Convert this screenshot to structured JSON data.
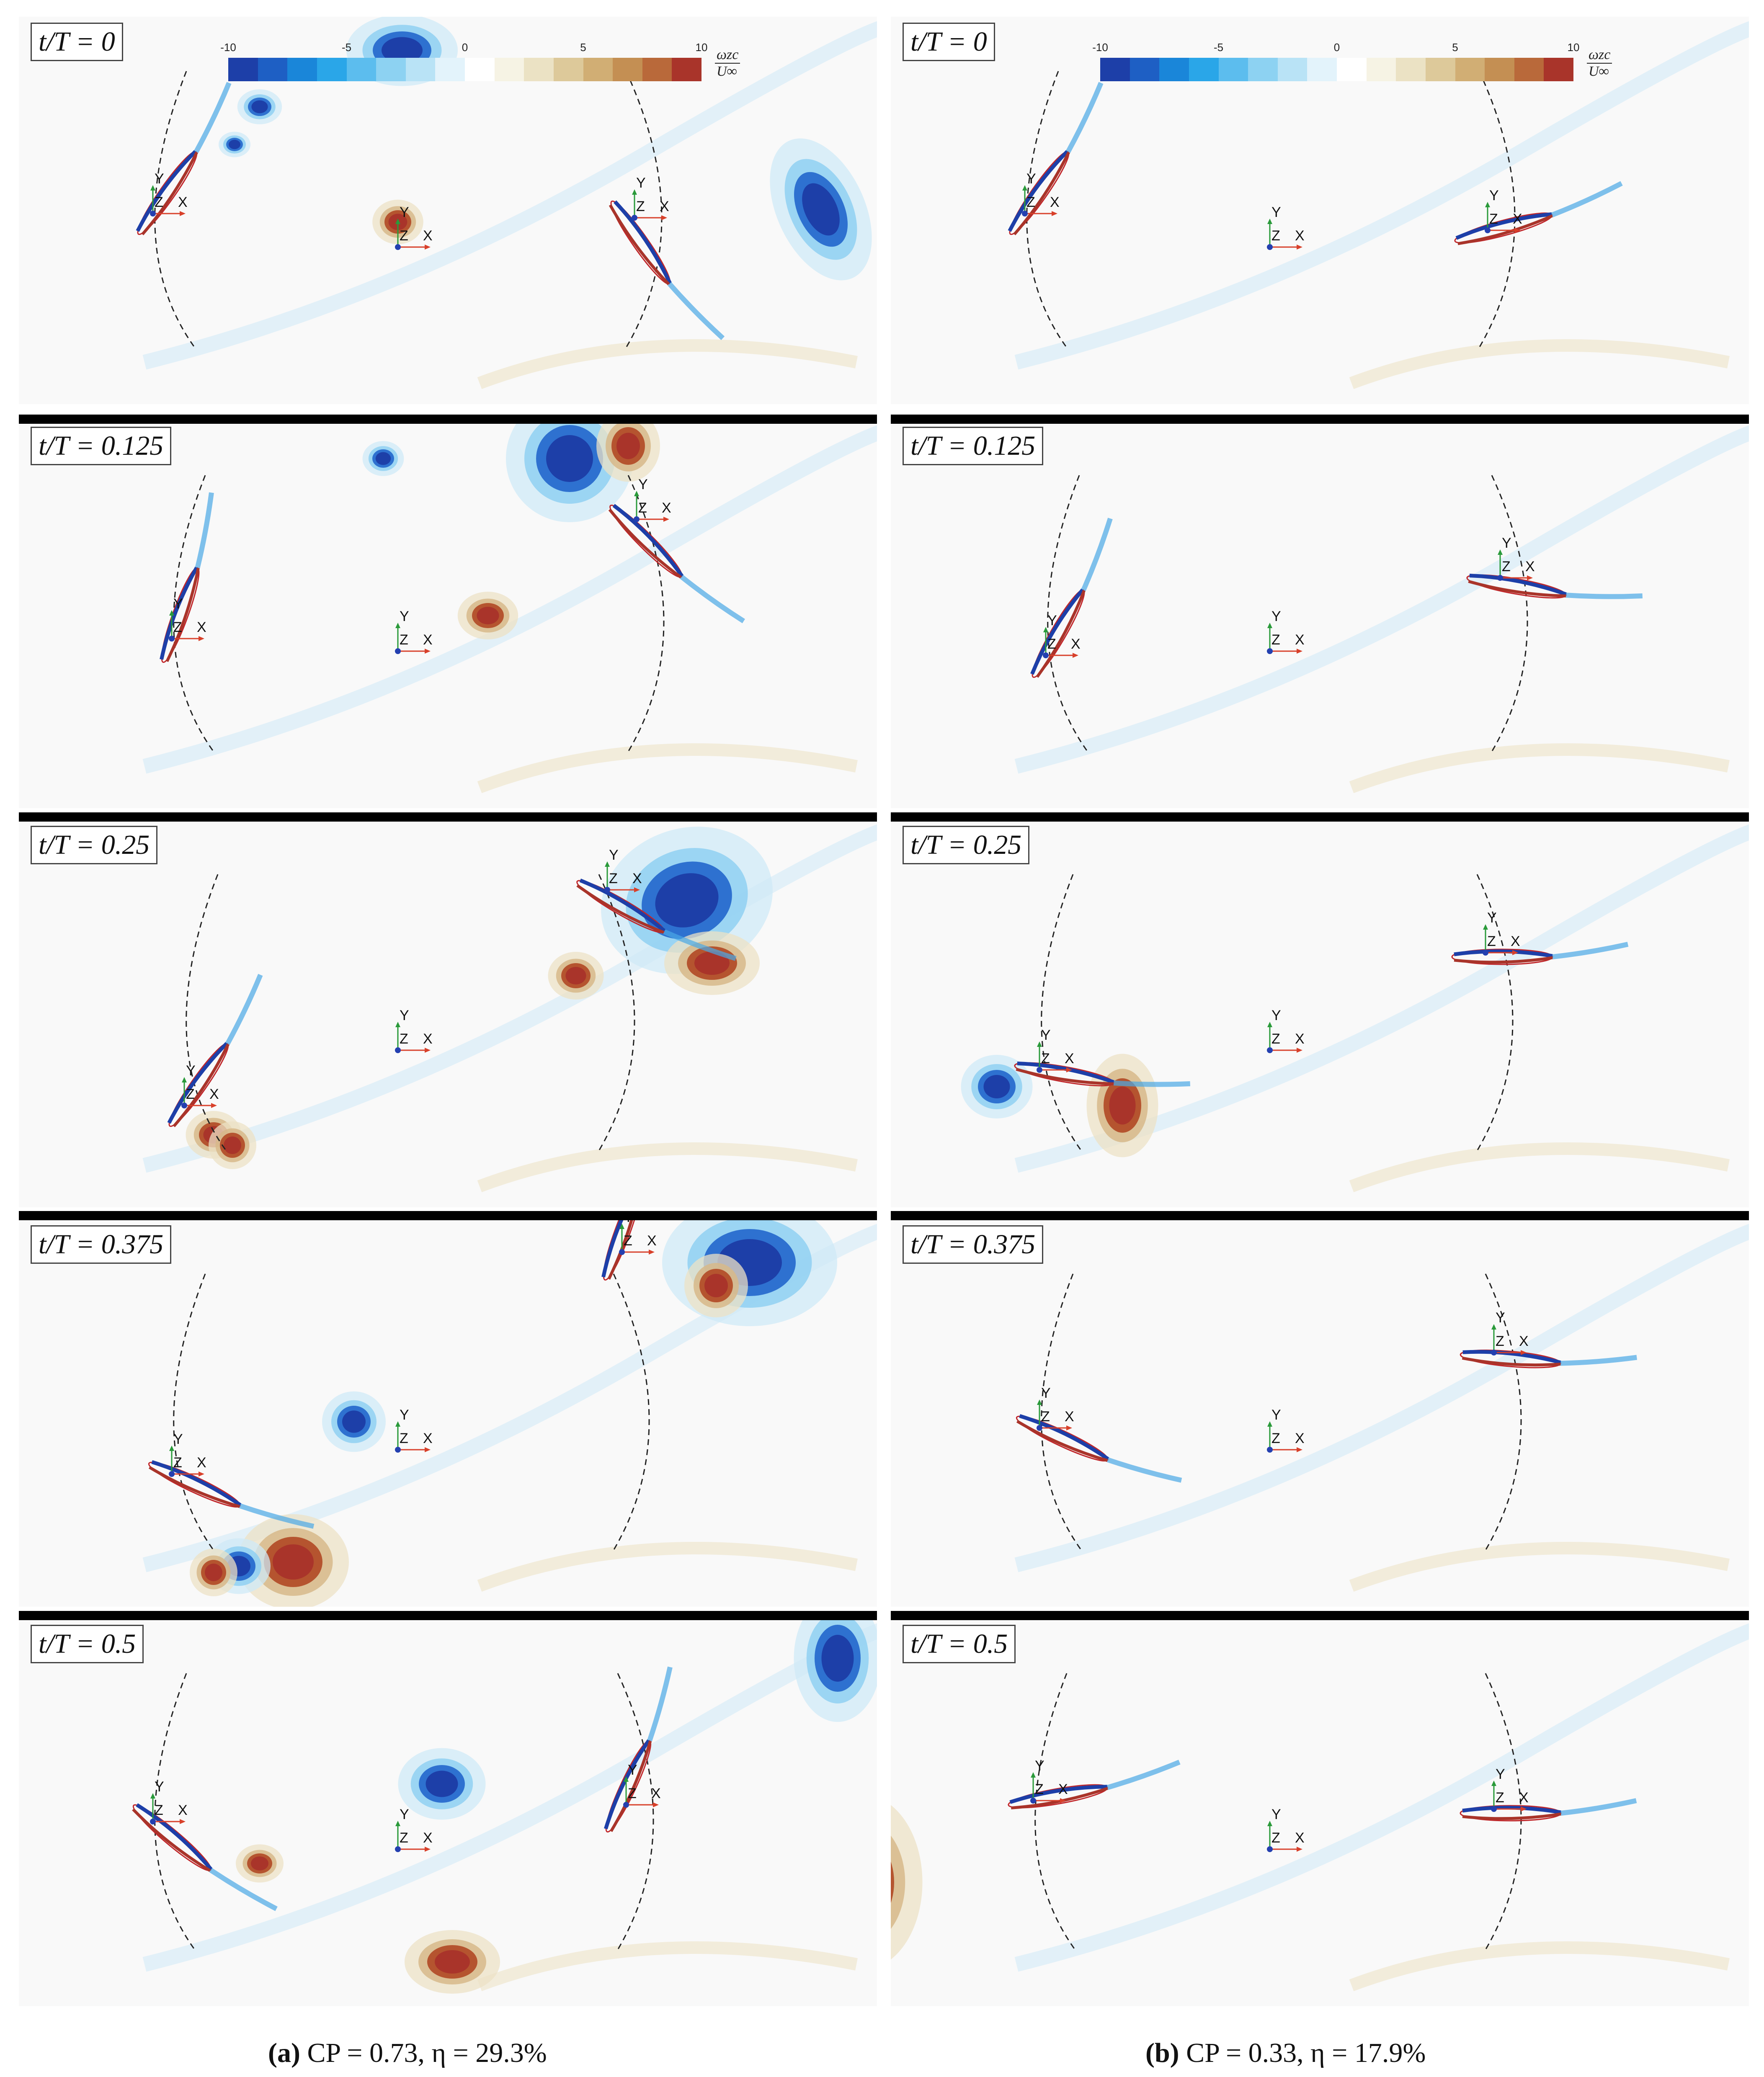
{
  "colorbar": {
    "ticks": [
      "-10",
      "-5",
      "0",
      "5",
      "10"
    ],
    "unit_numerator": "ωzc",
    "unit_denominator": "U∞",
    "colors": [
      "#1d3fa8",
      "#1e5fc4",
      "#1a86d9",
      "#2aa6e8",
      "#5cbdee",
      "#8dd2f2",
      "#b9e3f6",
      "#e3f3fb",
      "#ffffff",
      "#f6f3e4",
      "#ebe2c4",
      "#ddc99a",
      "#d1ae74",
      "#c48f53",
      "#b9693a",
      "#a9342a"
    ]
  },
  "time_labels": [
    "t/T = 0",
    "t/T = 0.125",
    "t/T = 0.25",
    "t/T = 0.375",
    "t/T = 0.5"
  ],
  "axis_triad": {
    "x": "X",
    "y": "Y",
    "z": "Z"
  },
  "captions": {
    "a": {
      "letter": "(a)",
      "text": "CP = 0.73, η = 29.3%"
    },
    "b": {
      "letter": "(b)",
      "text": "CP = 0.33, η = 17.9%"
    }
  },
  "colors": {
    "positive": "#a9342a",
    "negative": "#1d3fa8",
    "background": "#f9f9f9",
    "separator": "#000000"
  }
}
